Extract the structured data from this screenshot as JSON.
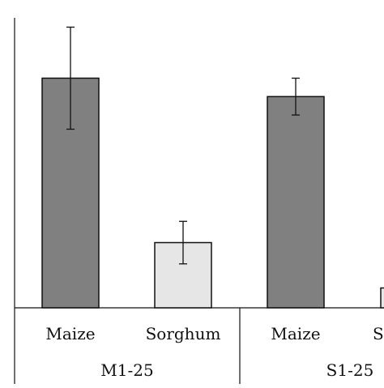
{
  "chart_data": {
    "type": "bar",
    "title": "",
    "xlabel": "",
    "ylabel": "",
    "ylim": [
      0,
      100
    ],
    "grid": false,
    "legend": "none",
    "bars": [
      {
        "category": "Maize",
        "group": "M1-25",
        "value": 81,
        "error": 18,
        "color": "#808080"
      },
      {
        "category": "Sorghum",
        "group": "M1-25",
        "value": 23,
        "error": 7.5,
        "color": "#e6e6e6"
      },
      {
        "category": "Maize",
        "group": "S1-25",
        "value": 74.5,
        "error": 6.5,
        "color": "#808080"
      },
      {
        "category": "Sorghum",
        "group": "S1-25",
        "value": 7,
        "error": 0,
        "color": "#e6e6e6"
      }
    ],
    "tick_labels": [
      "Maize",
      "Sorghum",
      "Maize",
      "So"
    ],
    "group_labels": [
      "M1-25",
      "S1-25"
    ]
  }
}
